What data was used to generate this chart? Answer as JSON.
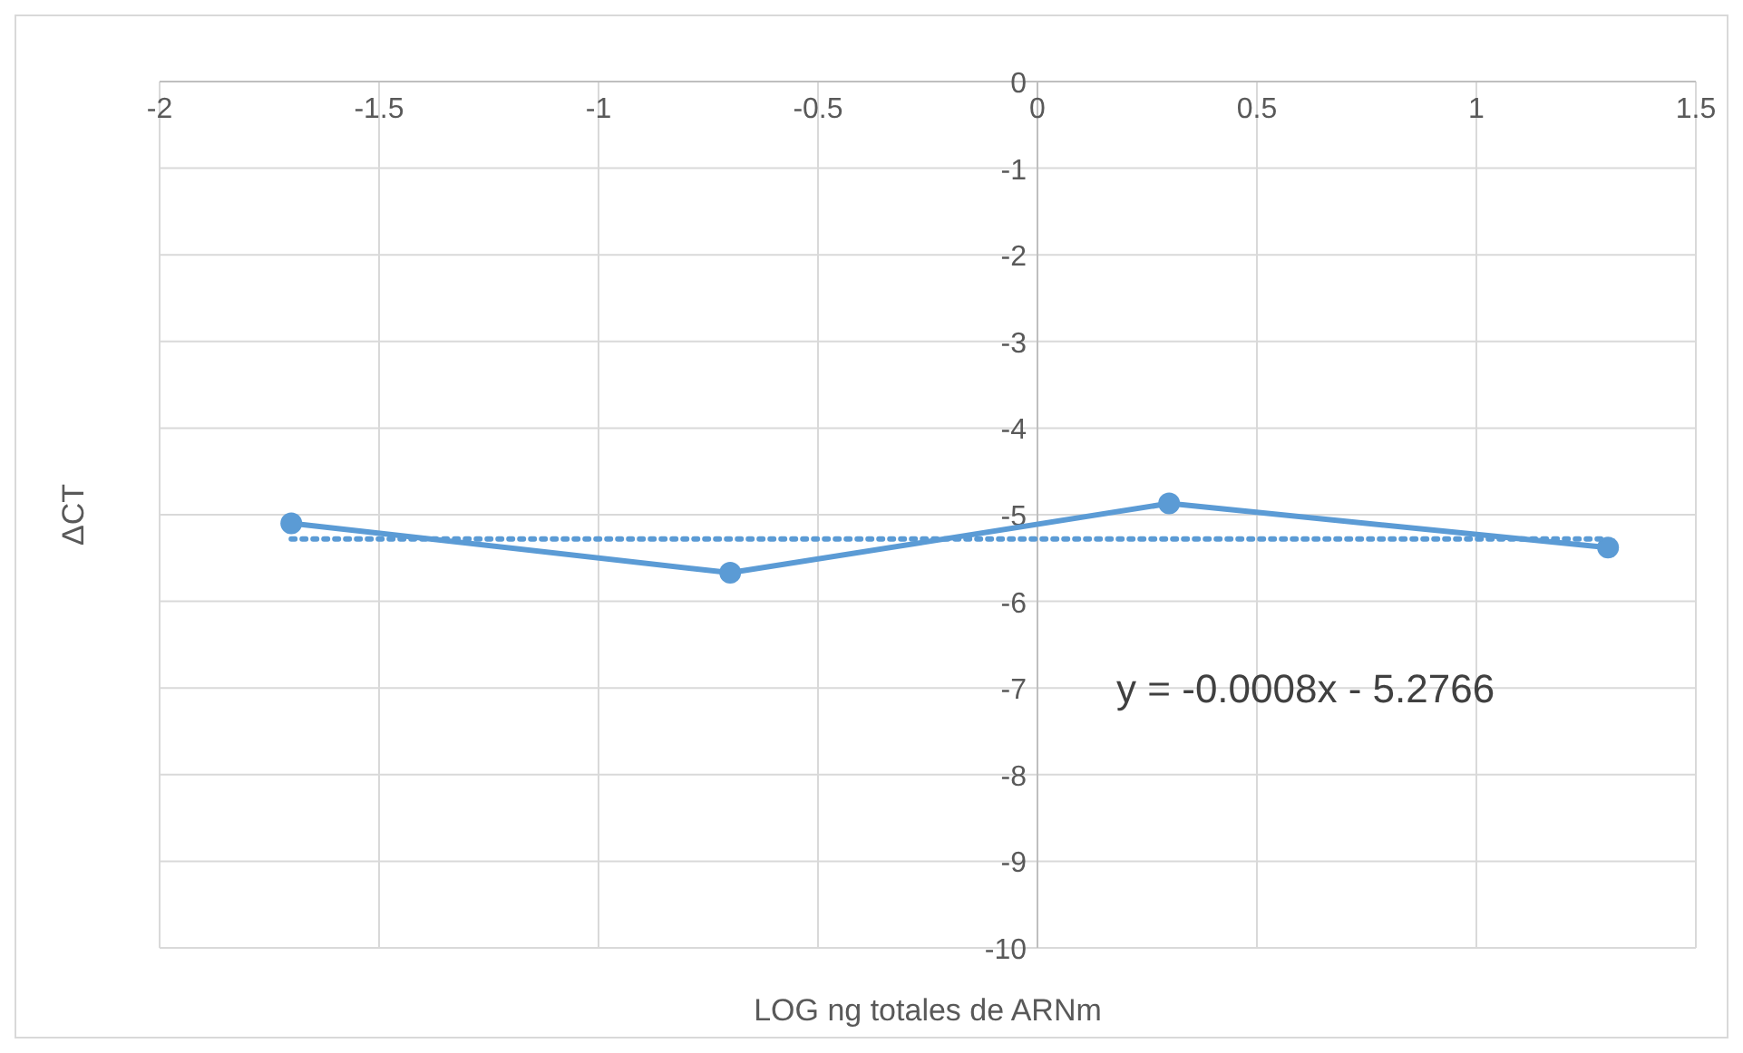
{
  "chart_data": {
    "type": "line",
    "xlabel": "LOG ng totales de ARNm",
    "ylabel": "ΔCT",
    "xlim": [
      -2,
      1.5
    ],
    "xticks": [
      -2,
      -1.5,
      -1,
      -0.5,
      0,
      0.5,
      1,
      1.5
    ],
    "ylim": [
      -10,
      0
    ],
    "yticks": [
      0,
      -1,
      -2,
      -3,
      -4,
      -5,
      -6,
      -7,
      -8,
      -9,
      -10
    ],
    "grid": true,
    "series": [
      {
        "color": "#5b9bd5",
        "marker": "circle",
        "line_style": "solid",
        "x": [
          -1.7,
          -0.7,
          0.3,
          1.3
        ],
        "values": [
          -5.1,
          -5.67,
          -4.87,
          -5.38
        ]
      },
      {
        "color": "#5b9bd5",
        "marker": "none",
        "line_style": "dotted",
        "x": [
          -1.7,
          1.3
        ],
        "values": [
          -5.28,
          -5.28
        ]
      }
    ],
    "annotations": [
      "y = -0.0008x - 5.2766"
    ]
  }
}
